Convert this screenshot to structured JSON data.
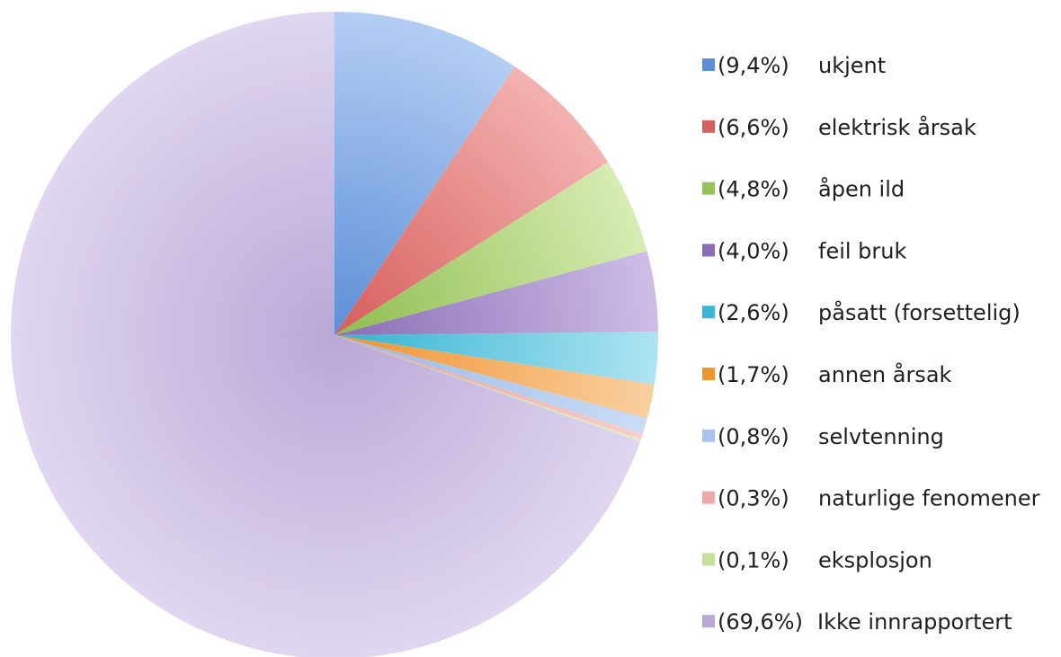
{
  "chart_data": {
    "type": "pie",
    "legend_position": "right",
    "slices": [
      {
        "label": "ukjent",
        "percent_label": "(9,4%)",
        "value": 9.4,
        "color": "#5b8fd6",
        "light": "#b4cdf3",
        "marker": "#5b8fd6"
      },
      {
        "label": "elektrisk årsak",
        "percent_label": "(6,6%)",
        "value": 6.6,
        "color": "#d65e5b",
        "light": "#f3b2b0",
        "marker": "#d6605d"
      },
      {
        "label": "åpen ild",
        "percent_label": "(4,8%)",
        "value": 4.8,
        "color": "#8fbd4e",
        "light": "#d6ecb3",
        "marker": "#97c15a"
      },
      {
        "label": "feil bruk",
        "percent_label": "(4,0%)",
        "value": 4.0,
        "color": "#8a6db5",
        "light": "#cdbde6",
        "marker": "#8a6db5"
      },
      {
        "label": "påsatt (forsettelig)",
        "percent_label": "(2,6%)",
        "value": 2.6,
        "color": "#33b4d2",
        "light": "#aee4f1",
        "marker": "#3ab7d4"
      },
      {
        "label": "annen årsak",
        "percent_label": "(1,7%)",
        "value": 1.7,
        "color": "#f0922e",
        "light": "#f9cf9f",
        "marker": "#f0962f"
      },
      {
        "label": "selvtenning",
        "percent_label": "(0,8%)",
        "value": 0.8,
        "color": "#97b7e6",
        "light": "#cbdcf5",
        "marker": "#a8c4ee"
      },
      {
        "label": "naturlige fenomener",
        "percent_label": "(0,3%)",
        "value": 0.3,
        "color": "#e89a97",
        "light": "#f6cfcd",
        "marker": "#eca9a6"
      },
      {
        "label": "eksplosjon",
        "percent_label": "(0,1%)",
        "value": 0.1,
        "color": "#b9d98a",
        "light": "#e0efc8",
        "marker": "#c4e09c"
      },
      {
        "label": "Ikke innrapportert",
        "percent_label": "(69,6%)",
        "value": 69.6,
        "color": "#b9a8d6",
        "light": "#e0d6f0",
        "marker": "#b9a8d6"
      }
    ]
  }
}
